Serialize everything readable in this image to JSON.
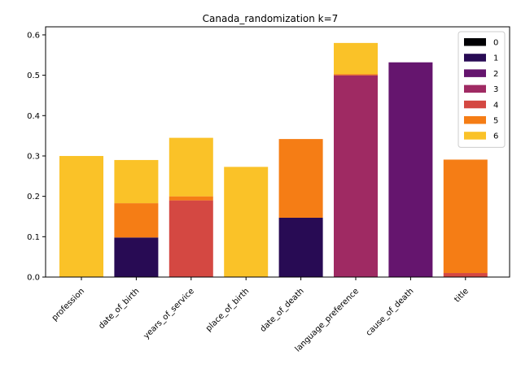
{
  "chart_data": {
    "type": "bar",
    "stacked": true,
    "title": "Canada_randomization k=7",
    "xlabel": "",
    "ylabel": "",
    "ylim": [
      0,
      0.62
    ],
    "yticks": [
      0.0,
      0.1,
      0.2,
      0.3,
      0.4,
      0.5,
      0.6
    ],
    "ytick_labels": [
      "0.0",
      "0.1",
      "0.2",
      "0.3",
      "0.4",
      "0.5",
      "0.6"
    ],
    "categories": [
      "profession",
      "date_of_birth",
      "years_of_service",
      "place_of_birth",
      "date_of_death",
      "language_preference",
      "cause_of_death",
      "title"
    ],
    "legend_position": "top-right",
    "grid": false,
    "series": [
      {
        "name": "0",
        "color": "#000004",
        "values": [
          0,
          0,
          0,
          0,
          0,
          0,
          0,
          0
        ]
      },
      {
        "name": "1",
        "color": "#280b54",
        "values": [
          0,
          0.098,
          0,
          0,
          0.147,
          0,
          0,
          0
        ]
      },
      {
        "name": "2",
        "color": "#65156e",
        "values": [
          0,
          0,
          0,
          0,
          0,
          0,
          0.532,
          0
        ]
      },
      {
        "name": "3",
        "color": "#9f2a63",
        "values": [
          0,
          0,
          0,
          0,
          0,
          0.5,
          0,
          0
        ]
      },
      {
        "name": "4",
        "color": "#d44842",
        "values": [
          0,
          0,
          0.19,
          0,
          0,
          0,
          0,
          0.01
        ]
      },
      {
        "name": "5",
        "color": "#f57d15",
        "values": [
          0,
          0.085,
          0.01,
          0,
          0.195,
          0.003,
          0,
          0.281
        ]
      },
      {
        "name": "6",
        "color": "#fac228",
        "values": [
          0.3,
          0.107,
          0.145,
          0.273,
          0,
          0.077,
          0,
          0
        ]
      }
    ]
  }
}
